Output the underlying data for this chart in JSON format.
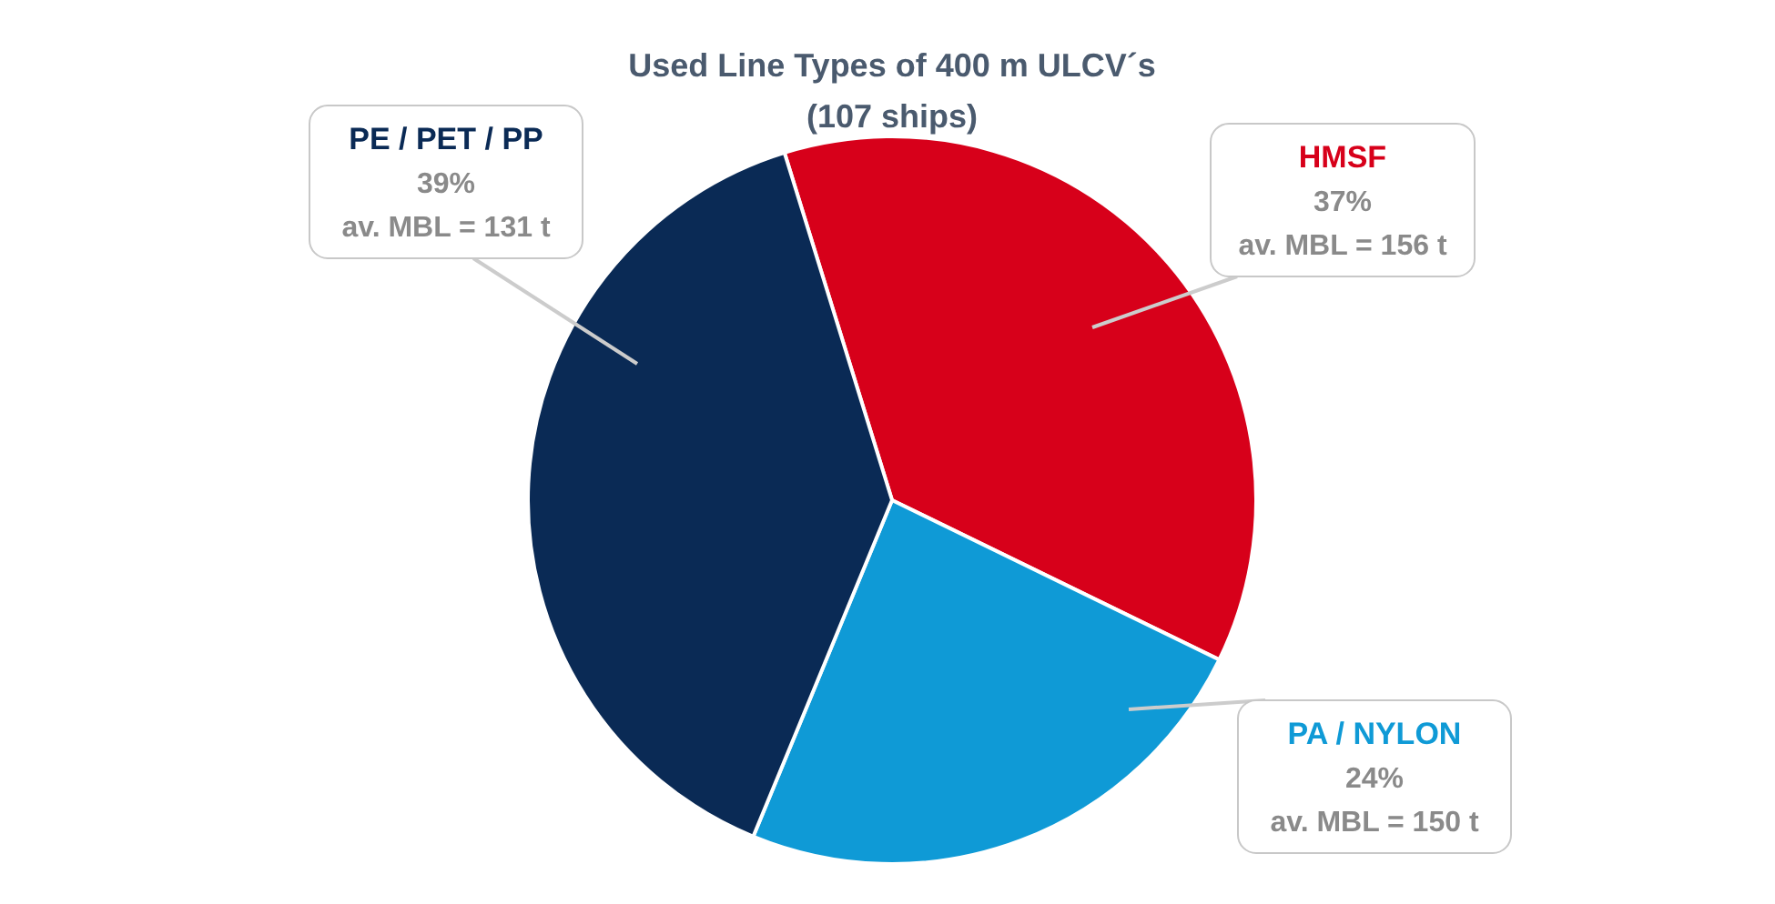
{
  "chart_data": {
    "type": "pie",
    "title": "Used Line Types of 400 m ULCV´s",
    "subtitle": "(107 ships)",
    "categories": [
      "HMSF",
      "PA / NYLON",
      "PE / PET / PP"
    ],
    "values": [
      37,
      24,
      39
    ],
    "colors": [
      "#d7001a",
      "#0f9ad6",
      "#0a2a55"
    ],
    "value_labels": [
      "37%",
      "24%",
      "39%"
    ],
    "annotations": [
      "av. MBL = 156 t",
      "av. MBL = 150 t",
      "av. MBL = 131 t"
    ]
  }
}
